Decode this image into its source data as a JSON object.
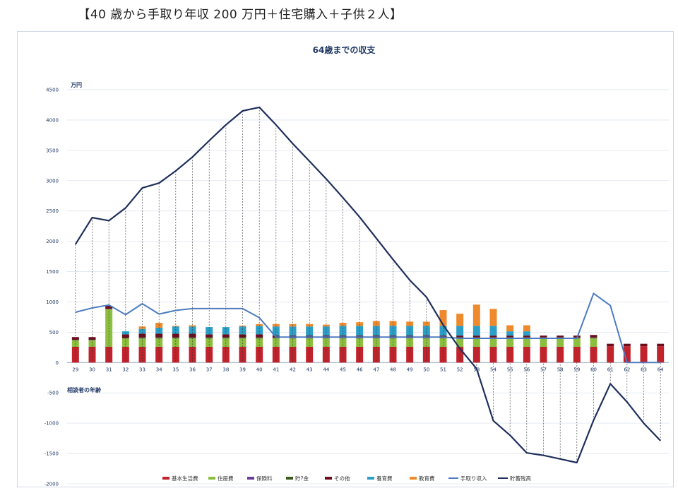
{
  "page_heading": "【40 歳から手取り年収 200 万円＋住宅購入＋子供２人】",
  "chart_data": {
    "type": "bar",
    "title": "64歳までの収支",
    "ylabel": "万円",
    "xlabel": "相談者の年齢",
    "ylim": [
      -2000,
      4500
    ],
    "yticks": [
      4500,
      4000,
      3500,
      3000,
      2500,
      2000,
      1500,
      1000,
      500,
      0,
      -500,
      -1000,
      -1500,
      -2000
    ],
    "grid": true,
    "legend_position": "bottom",
    "categories": [
      "29",
      "30",
      "31",
      "32",
      "33",
      "34",
      "35",
      "36",
      "37",
      "38",
      "39",
      "40",
      "41",
      "42",
      "43",
      "44",
      "45",
      "46",
      "47",
      "48",
      "49",
      "50",
      "51",
      "52",
      "53",
      "54",
      "55",
      "56",
      "57",
      "58",
      "59",
      "60",
      "61",
      "62",
      "63",
      "64"
    ],
    "stacked_series": [
      {
        "name": "基本生活費",
        "color": "#c0232c",
        "values": [
          260,
          260,
          260,
          260,
          260,
          260,
          260,
          260,
          260,
          260,
          260,
          260,
          260,
          260,
          260,
          260,
          260,
          260,
          260,
          260,
          260,
          260,
          260,
          260,
          260,
          260,
          260,
          260,
          260,
          260,
          260,
          260,
          270,
          270,
          270,
          270
        ]
      },
      {
        "name": "住居費",
        "color": "#8cbf3f",
        "values": [
          110,
          110,
          620,
          140,
          140,
          140,
          140,
          140,
          140,
          140,
          140,
          140,
          140,
          140,
          140,
          140,
          140,
          140,
          140,
          140,
          140,
          140,
          140,
          140,
          140,
          140,
          140,
          140,
          140,
          140,
          140,
          140,
          0,
          0,
          0,
          0
        ]
      },
      {
        "name": "保険料",
        "color": "#6a3d9a",
        "values": [
          5,
          5,
          5,
          5,
          5,
          5,
          5,
          5,
          5,
          5,
          5,
          5,
          5,
          5,
          5,
          5,
          5,
          5,
          5,
          5,
          5,
          5,
          5,
          5,
          5,
          5,
          5,
          5,
          5,
          5,
          5,
          5,
          0,
          0,
          0,
          0
        ]
      },
      {
        "name": "貯?金",
        "color": "#3a5a1e",
        "values": [
          0,
          0,
          0,
          0,
          10,
          10,
          10,
          10,
          10,
          10,
          10,
          10,
          10,
          10,
          10,
          10,
          10,
          10,
          10,
          10,
          10,
          10,
          10,
          10,
          10,
          10,
          10,
          10,
          10,
          10,
          10,
          10,
          0,
          0,
          0,
          0
        ]
      },
      {
        "name": "その他",
        "color": "#6b0d1b",
        "values": [
          45,
          45,
          50,
          60,
          60,
          60,
          60,
          60,
          50,
          50,
          50,
          50,
          30,
          30,
          30,
          30,
          30,
          30,
          30,
          30,
          30,
          30,
          30,
          30,
          30,
          30,
          30,
          30,
          30,
          30,
          30,
          40,
          40,
          40,
          40,
          40
        ]
      },
      {
        "name": "養育費",
        "color": "#2b9fc7",
        "values": [
          0,
          0,
          0,
          50,
          80,
          100,
          120,
          120,
          120,
          120,
          130,
          140,
          150,
          150,
          150,
          150,
          160,
          160,
          160,
          160,
          160,
          160,
          160,
          160,
          160,
          160,
          70,
          70,
          0,
          0,
          0,
          0,
          0,
          0,
          0,
          0
        ]
      },
      {
        "name": "教育費",
        "color": "#ee8a2c",
        "values": [
          0,
          0,
          0,
          0,
          40,
          80,
          10,
          20,
          0,
          0,
          15,
          30,
          40,
          40,
          40,
          30,
          50,
          60,
          80,
          80,
          70,
          70,
          260,
          200,
          350,
          280,
          100,
          100,
          0,
          0,
          0,
          0,
          0,
          0,
          0,
          0
        ]
      }
    ],
    "line_series": [
      {
        "name": "手取り収入",
        "color": "#4d7bc0",
        "values": [
          830,
          900,
          950,
          790,
          970,
          800,
          860,
          890,
          890,
          890,
          890,
          740,
          420,
          420,
          420,
          420,
          420,
          420,
          420,
          420,
          420,
          420,
          420,
          400,
          400,
          400,
          400,
          400,
          400,
          400,
          400,
          1140,
          940,
          0,
          0,
          0
        ]
      },
      {
        "name": "貯蓄残高",
        "color": "#1f2f5c",
        "values": [
          1950,
          2390,
          2340,
          2550,
          2880,
          2960,
          3160,
          3390,
          3660,
          3920,
          4150,
          4210,
          3920,
          3610,
          3320,
          3030,
          2720,
          2400,
          2050,
          1700,
          1360,
          1080,
          620,
          230,
          -100,
          -960,
          -1200,
          -1490,
          -1530,
          -1590,
          -1650,
          -950,
          -350,
          -650,
          -1000,
          -1290
        ]
      }
    ]
  }
}
